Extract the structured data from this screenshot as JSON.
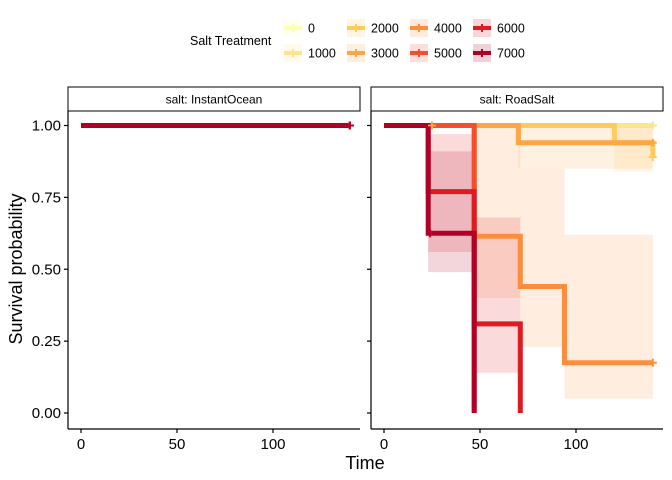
{
  "chart_data": {
    "type": "line",
    "subtype": "kaplan-meier step curves with confidence bands, faceted",
    "xlabel": "Time",
    "ylabel": "Survival probability",
    "xlim": [
      -5,
      143
    ],
    "ylim": [
      -0.04,
      1.04
    ],
    "xticks": [
      0,
      50,
      100
    ],
    "yticks": [
      0.0,
      0.25,
      0.5,
      0.75,
      1.0
    ],
    "ytick_labels": [
      "0.00",
      "0.25",
      "0.50",
      "0.75",
      "1.00"
    ],
    "grid": false,
    "legend": {
      "title": "Salt Treatment",
      "position": "top",
      "entries": [
        "0",
        "1000",
        "2000",
        "3000",
        "4000",
        "5000",
        "6000",
        "7000"
      ]
    },
    "colors": {
      "0": "#FFFFB2",
      "1000": "#FEE48A",
      "2000": "#FECB5C",
      "3000": "#FEA646",
      "4000": "#FD8C3C",
      "5000": "#F64D2C",
      "6000": "#DE1B20",
      "7000": "#B10026"
    },
    "facets": [
      {
        "label": "salt: InstantOcean",
        "series": [
          {
            "name": "0",
            "steps": [
              [
                0,
                1.0
              ],
              [
                140,
                1.0
              ]
            ],
            "censor": [
              [
                140,
                1.0
              ]
            ]
          },
          {
            "name": "1000",
            "steps": [
              [
                0,
                1.0
              ],
              [
                140,
                1.0
              ]
            ],
            "censor": [
              [
                140,
                1.0
              ]
            ]
          },
          {
            "name": "2000",
            "steps": [
              [
                0,
                1.0
              ],
              [
                140,
                1.0
              ]
            ],
            "censor": [
              [
                140,
                1.0
              ]
            ]
          },
          {
            "name": "3000",
            "steps": [
              [
                0,
                1.0
              ],
              [
                140,
                1.0
              ]
            ],
            "censor": [
              [
                140,
                1.0
              ]
            ]
          },
          {
            "name": "4000",
            "steps": [
              [
                0,
                1.0
              ],
              [
                140,
                1.0
              ]
            ],
            "censor": [
              [
                140,
                1.0
              ]
            ]
          },
          {
            "name": "5000",
            "steps": [
              [
                0,
                1.0
              ],
              [
                140,
                1.0
              ]
            ],
            "censor": [
              [
                140,
                1.0
              ]
            ]
          },
          {
            "name": "6000",
            "steps": [
              [
                0,
                1.0
              ],
              [
                140,
                1.0
              ]
            ],
            "censor": [
              [
                140,
                1.0
              ]
            ]
          },
          {
            "name": "7000",
            "steps": [
              [
                0,
                1.0
              ],
              [
                140,
                1.0
              ]
            ],
            "censor": [
              [
                140,
                1.0
              ]
            ]
          }
        ]
      },
      {
        "label": "salt: RoadSalt",
        "series": [
          {
            "name": "0",
            "steps": [
              [
                0,
                1.0
              ],
              [
                140,
                1.0
              ]
            ],
            "censor": [
              [
                140,
                1.0
              ]
            ]
          },
          {
            "name": "1000",
            "steps": [
              [
                0,
                1.0
              ],
              [
                140,
                1.0
              ]
            ],
            "censor": [
              [
                140,
                1.0
              ]
            ]
          },
          {
            "name": "2000",
            "steps": [
              [
                0,
                1.0
              ],
              [
                120,
                1.0
              ],
              [
                120,
                0.94
              ],
              [
                140,
                0.94
              ],
              [
                140,
                0.89
              ]
            ],
            "censor": [
              [
                140,
                0.89
              ]
            ],
            "band": [
              [
                0,
                1.0,
                1.0
              ],
              [
                120,
                0.84,
                1.0
              ],
              [
                140,
                0.84,
                1.0
              ]
            ]
          },
          {
            "name": "3000",
            "steps": [
              [
                0,
                1.0
              ],
              [
                70,
                1.0
              ],
              [
                70,
                0.94
              ],
              [
                140,
                0.94
              ]
            ],
            "censor": [
              [
                25,
                1.0
              ],
              [
                140,
                0.94
              ]
            ],
            "band": [
              [
                0,
                1.0,
                1.0
              ],
              [
                70,
                0.85,
                1.0
              ],
              [
                140,
                0.85,
                1.0
              ]
            ]
          },
          {
            "name": "4000",
            "steps": [
              [
                0,
                1.0
              ],
              [
                47,
                1.0
              ],
              [
                47,
                0.615
              ],
              [
                71,
                0.615
              ],
              [
                71,
                0.44
              ],
              [
                94,
                0.44
              ],
              [
                94,
                0.175
              ],
              [
                140,
                0.175
              ]
            ],
            "censor": [
              [
                140,
                0.175
              ]
            ],
            "band": [
              [
                0,
                1.0,
                1.0
              ],
              [
                47,
                0.4,
                1.0
              ],
              [
                71,
                0.23,
                0.85
              ],
              [
                94,
                0.05,
                0.62
              ],
              [
                140,
                0.05,
                0.62
              ]
            ]
          },
          {
            "name": "5000",
            "steps": [
              [
                0,
                1.0
              ],
              [
                47,
                1.0
              ],
              [
                47,
                0.0
              ]
            ],
            "censor": [],
            "band": [
              [
                0,
                1.0,
                1.0
              ],
              [
                47,
                0.0,
                1.0
              ]
            ]
          },
          {
            "name": "6000",
            "steps": [
              [
                0,
                1.0
              ],
              [
                23,
                1.0
              ],
              [
                23,
                0.77
              ],
              [
                47,
                0.77
              ],
              [
                47,
                0.31
              ],
              [
                71,
                0.31
              ],
              [
                71,
                0.0
              ]
            ],
            "censor": [],
            "band": [
              [
                0,
                1.0,
                1.0
              ],
              [
                23,
                0.56,
                0.97
              ],
              [
                47,
                0.14,
                0.68
              ],
              [
                71,
                0.0,
                0.0
              ]
            ]
          },
          {
            "name": "7000",
            "steps": [
              [
                0,
                1.0
              ],
              [
                23,
                1.0
              ],
              [
                23,
                0.625
              ],
              [
                47,
                0.625
              ],
              [
                47,
                0.0
              ]
            ],
            "censor": [
              [
                24,
                0.625
              ]
            ],
            "band": [
              [
                0,
                1.0,
                1.0
              ],
              [
                23,
                0.49,
                0.91
              ],
              [
                47,
                0.0,
                0.0
              ]
            ]
          }
        ]
      }
    ]
  }
}
